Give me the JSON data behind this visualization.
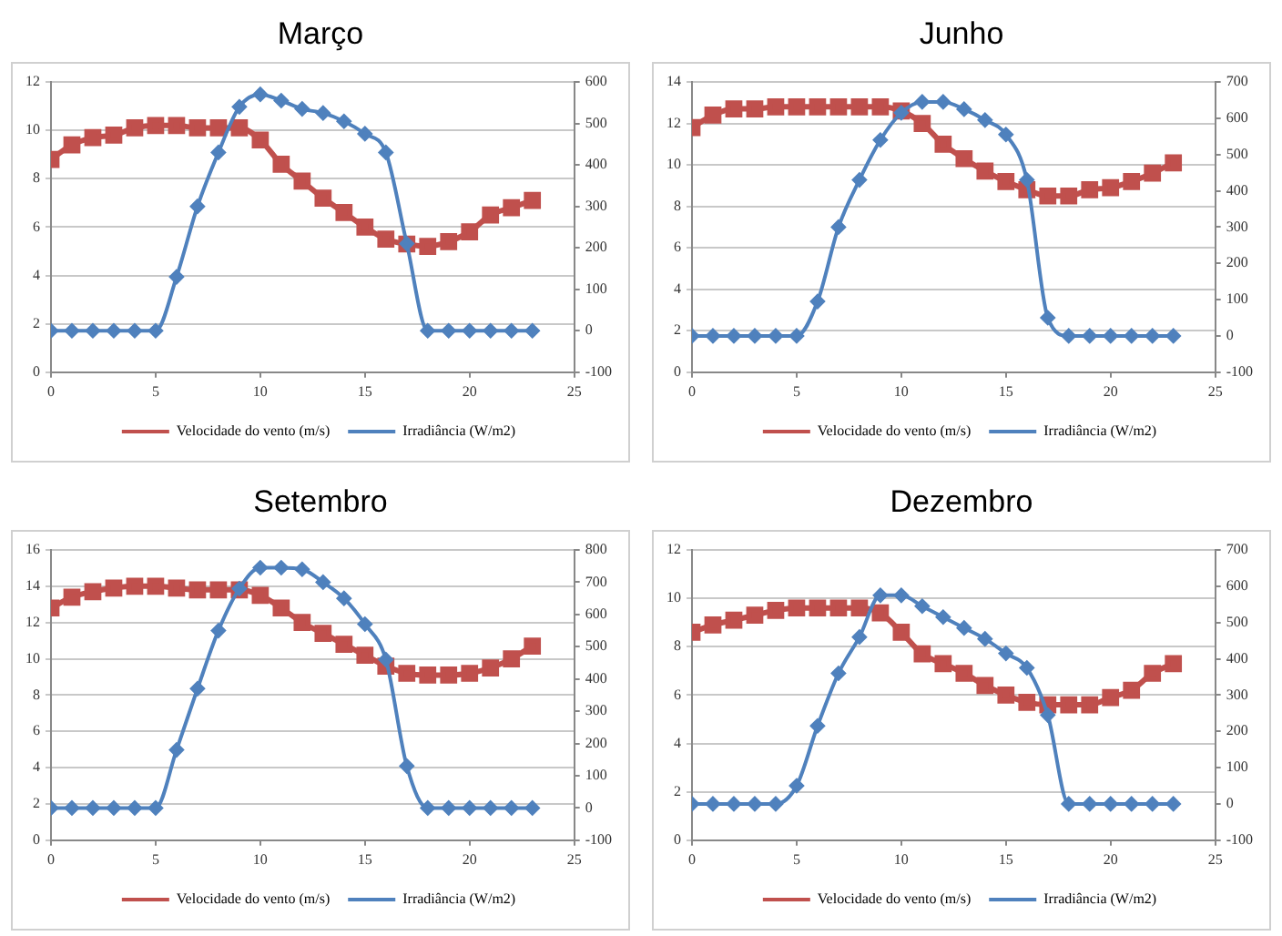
{
  "chart_data": [
    {
      "type": "line",
      "title": "Março",
      "x": [
        0,
        1,
        2,
        3,
        4,
        5,
        6,
        7,
        8,
        9,
        10,
        11,
        12,
        13,
        14,
        15,
        16,
        17,
        18,
        19,
        20,
        21,
        22,
        23
      ],
      "xlim": [
        0,
        25
      ],
      "xticks": [
        0,
        5,
        10,
        15,
        20,
        25
      ],
      "ylim": [
        0,
        12
      ],
      "yticks": [
        0,
        2,
        4,
        6,
        8,
        10,
        12
      ],
      "y2lim": [
        -100,
        600
      ],
      "y2ticks": [
        -100,
        0,
        100,
        200,
        300,
        400,
        500,
        600
      ],
      "grid": "y",
      "legend": "bottom",
      "series": [
        {
          "name": "Velocidade do vento (m/s)",
          "color": "#c0504d",
          "marker": "square",
          "values": [
            8.8,
            9.4,
            9.7,
            9.8,
            10.1,
            10.2,
            10.2,
            10.1,
            10.1,
            10.1,
            9.6,
            8.6,
            7.9,
            7.2,
            6.6,
            6.0,
            5.5,
            5.3,
            5.2,
            5.4,
            5.8,
            6.5,
            6.8,
            7.1
          ]
        },
        {
          "name": "Irradiância (W/m2)",
          "color": "#4f81bd",
          "marker": "diamond",
          "axis": "y2",
          "values": [
            0,
            0,
            0,
            0,
            0,
            0,
            130,
            300,
            430,
            540,
            570,
            555,
            535,
            525,
            505,
            475,
            430,
            210,
            0,
            0,
            0,
            0,
            0,
            0
          ]
        }
      ]
    },
    {
      "type": "line",
      "title": "Junho",
      "x": [
        0,
        1,
        2,
        3,
        4,
        5,
        6,
        7,
        8,
        9,
        10,
        11,
        12,
        13,
        14,
        15,
        16,
        17,
        18,
        19,
        20,
        21,
        22,
        23
      ],
      "xlim": [
        0,
        25
      ],
      "xticks": [
        0,
        5,
        10,
        15,
        20,
        25
      ],
      "ylim": [
        0,
        14
      ],
      "yticks": [
        0,
        2,
        4,
        6,
        8,
        10,
        12,
        14
      ],
      "y2lim": [
        -100,
        700
      ],
      "y2ticks": [
        -100,
        0,
        100,
        200,
        300,
        400,
        500,
        600,
        700
      ],
      "grid": "y",
      "legend": "bottom",
      "series": [
        {
          "name": "Velocidade do vento (m/s)",
          "color": "#c0504d",
          "marker": "square",
          "values": [
            11.8,
            12.4,
            12.7,
            12.7,
            12.8,
            12.8,
            12.8,
            12.8,
            12.8,
            12.8,
            12.6,
            12.0,
            11.0,
            10.3,
            9.7,
            9.2,
            8.8,
            8.5,
            8.5,
            8.8,
            8.9,
            9.2,
            9.6,
            10.1
          ]
        },
        {
          "name": "Irradiância (W/m2)",
          "color": "#4f81bd",
          "marker": "diamond",
          "axis": "y2",
          "values": [
            0,
            0,
            0,
            0,
            0,
            0,
            95,
            300,
            430,
            540,
            615,
            645,
            645,
            625,
            595,
            555,
            430,
            50,
            0,
            0,
            0,
            0,
            0,
            0
          ]
        }
      ]
    },
    {
      "type": "line",
      "title": "Setembro",
      "x": [
        0,
        1,
        2,
        3,
        4,
        5,
        6,
        7,
        8,
        9,
        10,
        11,
        12,
        13,
        14,
        15,
        16,
        17,
        18,
        19,
        20,
        21,
        22,
        23
      ],
      "xlim": [
        0,
        25
      ],
      "xticks": [
        0,
        5,
        10,
        15,
        20,
        25
      ],
      "ylim": [
        0,
        16
      ],
      "yticks": [
        0,
        2,
        4,
        6,
        8,
        10,
        12,
        14,
        16
      ],
      "y2lim": [
        -100,
        800
      ],
      "y2ticks": [
        -100,
        0,
        100,
        200,
        300,
        400,
        500,
        600,
        700,
        800
      ],
      "grid": "y",
      "legend": "bottom",
      "series": [
        {
          "name": "Velocidade do vento (m/s)",
          "color": "#c0504d",
          "marker": "square",
          "values": [
            12.8,
            13.4,
            13.7,
            13.9,
            14.0,
            14.0,
            13.9,
            13.8,
            13.8,
            13.8,
            13.5,
            12.8,
            12.0,
            11.4,
            10.8,
            10.2,
            9.6,
            9.2,
            9.1,
            9.1,
            9.2,
            9.5,
            10.0,
            10.7
          ]
        },
        {
          "name": "Irradiância (W/m2)",
          "color": "#4f81bd",
          "marker": "diamond",
          "axis": "y2",
          "values": [
            0,
            0,
            0,
            0,
            0,
            0,
            180,
            370,
            550,
            680,
            745,
            745,
            740,
            700,
            650,
            570,
            460,
            130,
            0,
            0,
            0,
            0,
            0,
            0
          ]
        }
      ]
    },
    {
      "type": "line",
      "title": "Dezembro",
      "x": [
        0,
        1,
        2,
        3,
        4,
        5,
        6,
        7,
        8,
        9,
        10,
        11,
        12,
        13,
        14,
        15,
        16,
        17,
        18,
        19,
        20,
        21,
        22,
        23
      ],
      "xlim": [
        0,
        25
      ],
      "xticks": [
        0,
        5,
        10,
        15,
        20,
        25
      ],
      "ylim": [
        0,
        12
      ],
      "yticks": [
        0,
        2,
        4,
        6,
        8,
        10,
        12
      ],
      "y2lim": [
        -100,
        700
      ],
      "y2ticks": [
        -100,
        0,
        100,
        200,
        300,
        400,
        500,
        600,
        700
      ],
      "grid": "y",
      "legend": "bottom",
      "series": [
        {
          "name": "Velocidade do vento (m/s)",
          "color": "#c0504d",
          "marker": "square",
          "values": [
            8.6,
            8.9,
            9.1,
            9.3,
            9.5,
            9.6,
            9.6,
            9.6,
            9.6,
            9.4,
            8.6,
            7.7,
            7.3,
            6.9,
            6.4,
            6.0,
            5.7,
            5.6,
            5.6,
            5.6,
            5.9,
            6.2,
            6.9,
            7.3
          ]
        },
        {
          "name": "Irradiância (W/m2)",
          "color": "#4f81bd",
          "marker": "diamond",
          "axis": "y2",
          "values": [
            0,
            0,
            0,
            0,
            0,
            50,
            215,
            360,
            460,
            575,
            575,
            545,
            515,
            485,
            455,
            415,
            375,
            245,
            0,
            0,
            0,
            0,
            0,
            0
          ]
        }
      ]
    }
  ]
}
